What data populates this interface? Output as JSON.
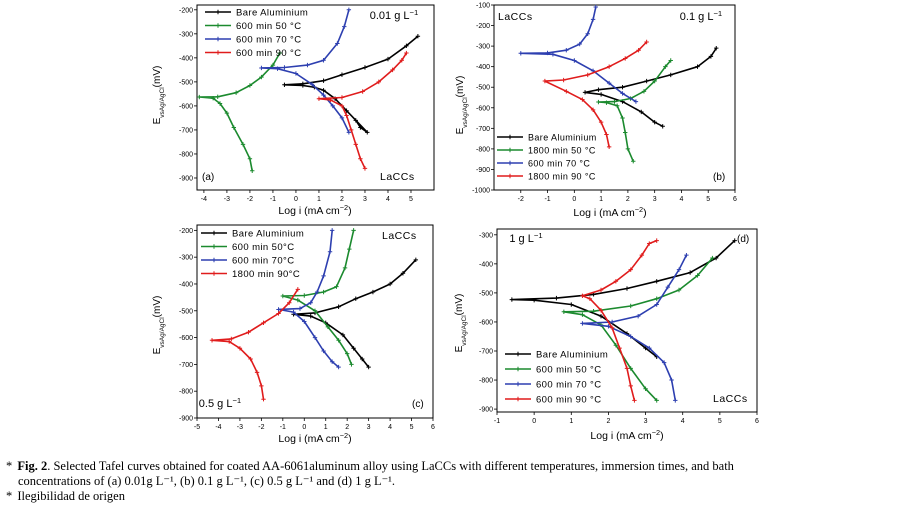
{
  "figure": {
    "caption": {
      "bullet": "*",
      "label": "Fig. 2",
      "line1_rest": ". Selected Tafel curves obtained for coated AA-6061aluminum alloy using LaCCs with different temperatures, immersion times, and bath",
      "line2": "concentrations of (a) 0.01g L⁻¹, (b) 0.1 g L⁻¹, (c) 0.5 g L⁻¹ and (d) 1 g L⁻¹.",
      "note": "Ilegibilidad de origen"
    }
  },
  "chart_data": [
    {
      "type": "line",
      "panel": "(a)",
      "concentration": "0.01 g L⁻¹",
      "coating": "LaCCs",
      "xlabel": "Log i (mA cm⁻²)",
      "ylabel": "E vs Ag/AgCl (mV)",
      "xlim": [
        -4.3,
        6
      ],
      "ylim": [
        -950,
        -180
      ],
      "xticks": [
        -4,
        -3,
        -2,
        -1,
        0,
        1,
        2,
        3,
        4,
        5
      ],
      "yticks": [
        -200,
        -300,
        -400,
        -500,
        -600,
        -700,
        -800,
        -900
      ],
      "legend_position": "top-left",
      "series": [
        {
          "name": "Bare Aluminium",
          "color": "#000000",
          "points": [
            [
              2.6,
              -660
            ],
            [
              2.8,
              -690
            ],
            [
              3.1,
              -710
            ],
            [
              2.2,
              -620
            ],
            [
              1.7,
              -570
            ],
            [
              1.2,
              -535
            ],
            [
              0.8,
              -522
            ],
            [
              0.3,
              -515
            ],
            [
              -0.5,
              -512
            ],
            [
              0.3,
              -508
            ],
            [
              1.2,
              -495
            ],
            [
              2.0,
              -470
            ],
            [
              3.0,
              -440
            ],
            [
              4.0,
              -405
            ],
            [
              4.8,
              -350
            ],
            [
              5.3,
              -310
            ]
          ]
        },
        {
          "name": "600 min 50 °C",
          "color": "#1b8a2e",
          "points": [
            [
              -1.9,
              -870
            ],
            [
              -2.0,
              -820
            ],
            [
              -2.3,
              -760
            ],
            [
              -2.7,
              -690
            ],
            [
              -3.0,
              -630
            ],
            [
              -3.3,
              -590
            ],
            [
              -3.6,
              -568
            ],
            [
              -4.2,
              -563
            ],
            [
              -3.4,
              -562
            ],
            [
              -2.6,
              -545
            ],
            [
              -2.0,
              -515
            ],
            [
              -1.5,
              -480
            ],
            [
              -1.0,
              -430
            ],
            [
              -0.7,
              -380
            ]
          ]
        },
        {
          "name": "600 min 70 °C",
          "color": "#2d3fb0",
          "points": [
            [
              2.3,
              -710
            ],
            [
              2.0,
              -650
            ],
            [
              1.6,
              -600
            ],
            [
              1.2,
              -555
            ],
            [
              0.7,
              -510
            ],
            [
              0.0,
              -465
            ],
            [
              -0.8,
              -445
            ],
            [
              -1.5,
              -442
            ],
            [
              -0.5,
              -440
            ],
            [
              0.5,
              -430
            ],
            [
              1.2,
              -410
            ],
            [
              1.8,
              -340
            ],
            [
              2.1,
              -270
            ],
            [
              2.3,
              -200
            ]
          ]
        },
        {
          "name": "600 min 90 °C",
          "color": "#e01c1c",
          "points": [
            [
              3.0,
              -860
            ],
            [
              2.8,
              -820
            ],
            [
              2.6,
              -760
            ],
            [
              2.4,
              -700
            ],
            [
              2.2,
              -640
            ],
            [
              2.0,
              -600
            ],
            [
              1.5,
              -575
            ],
            [
              1.0,
              -570
            ],
            [
              2.0,
              -565
            ],
            [
              2.9,
              -540
            ],
            [
              3.6,
              -500
            ],
            [
              4.2,
              -450
            ],
            [
              4.6,
              -410
            ],
            [
              4.8,
              -380
            ]
          ]
        }
      ]
    },
    {
      "type": "line",
      "panel": "(b)",
      "concentration": "0.1 g L⁻¹",
      "coating": "LaCCs",
      "xlabel": "Log i (mA cm⁻²)",
      "ylabel": "E vs Ag/AgCl (mV)",
      "xlim": [
        -3,
        6
      ],
      "ylim": [
        -1000,
        -100
      ],
      "xticks": [
        -2,
        -1,
        0,
        1,
        2,
        3,
        4,
        5,
        6
      ],
      "yticks": [
        -100,
        -200,
        -300,
        -400,
        -500,
        -600,
        -700,
        -800,
        -900,
        -1000
      ],
      "legend_position": "bottom-left",
      "series": [
        {
          "name": "Bare Aluminium",
          "color": "#000000",
          "points": [
            [
              3.3,
              -690
            ],
            [
              3.0,
              -670
            ],
            [
              2.5,
              -620
            ],
            [
              1.8,
              -570
            ],
            [
              1.0,
              -535
            ],
            [
              0.4,
              -525
            ],
            [
              0.9,
              -512
            ],
            [
              1.8,
              -500
            ],
            [
              2.7,
              -470
            ],
            [
              3.6,
              -440
            ],
            [
              4.6,
              -400
            ],
            [
              5.1,
              -350
            ],
            [
              5.3,
              -310
            ]
          ]
        },
        {
          "name": "1800 min 50 °C",
          "color": "#1b8a2e",
          "points": [
            [
              2.2,
              -860
            ],
            [
              2.0,
              -800
            ],
            [
              1.9,
              -720
            ],
            [
              1.8,
              -650
            ],
            [
              1.6,
              -590
            ],
            [
              1.2,
              -575
            ],
            [
              0.9,
              -572
            ],
            [
              1.5,
              -570
            ],
            [
              2.1,
              -555
            ],
            [
              2.6,
              -520
            ],
            [
              3.0,
              -470
            ],
            [
              3.4,
              -400
            ],
            [
              3.6,
              -370
            ]
          ]
        },
        {
          "name": "600  min 70 °C",
          "color": "#2d3fb0",
          "points": [
            [
              2.3,
              -570
            ],
            [
              1.8,
              -530
            ],
            [
              1.3,
              -480
            ],
            [
              0.7,
              -420
            ],
            [
              0.0,
              -370
            ],
            [
              -0.8,
              -340
            ],
            [
              -2.0,
              -335
            ],
            [
              -1.0,
              -333
            ],
            [
              -0.3,
              -320
            ],
            [
              0.2,
              -290
            ],
            [
              0.5,
              -240
            ],
            [
              0.7,
              -170
            ],
            [
              0.8,
              -110
            ]
          ]
        },
        {
          "name": "1800 min 90 °C",
          "color": "#e01c1c",
          "points": [
            [
              1.3,
              -790
            ],
            [
              1.2,
              -730
            ],
            [
              1.0,
              -670
            ],
            [
              0.7,
              -610
            ],
            [
              0.3,
              -560
            ],
            [
              -0.3,
              -520
            ],
            [
              -1.1,
              -470
            ],
            [
              -0.4,
              -465
            ],
            [
              0.5,
              -440
            ],
            [
              1.3,
              -400
            ],
            [
              1.9,
              -360
            ],
            [
              2.4,
              -320
            ],
            [
              2.7,
              -280
            ]
          ]
        }
      ]
    },
    {
      "type": "line",
      "panel": "(c)",
      "concentration": "0.5 g L⁻¹",
      "coating": "LaCCs",
      "xlabel": "Log i (mA cm⁻²)",
      "ylabel": "E vs Ag/AgCl (mV)",
      "xlim": [
        -5,
        6
      ],
      "ylim": [
        -900,
        -180
      ],
      "xticks": [
        -5,
        -4,
        -3,
        -2,
        -1,
        0,
        1,
        2,
        3,
        4,
        5,
        6
      ],
      "yticks": [
        -200,
        -300,
        -400,
        -500,
        -600,
        -700,
        -800,
        -900
      ],
      "legend_position": "top-left",
      "series": [
        {
          "name": "Bare Aluminium",
          "color": "#000000",
          "points": [
            [
              3.0,
              -710
            ],
            [
              2.7,
              -680
            ],
            [
              2.3,
              -640
            ],
            [
              1.8,
              -590
            ],
            [
              1.0,
              -545
            ],
            [
              0.3,
              -520
            ],
            [
              -0.5,
              -513
            ],
            [
              0.5,
              -508
            ],
            [
              1.6,
              -485
            ],
            [
              2.4,
              -455
            ],
            [
              3.2,
              -430
            ],
            [
              4.0,
              -400
            ],
            [
              4.6,
              -360
            ],
            [
              5.2,
              -310
            ]
          ]
        },
        {
          "name": "600 min 50°C",
          "color": "#1b8a2e",
          "points": [
            [
              2.2,
              -700
            ],
            [
              2.0,
              -660
            ],
            [
              1.6,
              -610
            ],
            [
              1.1,
              -560
            ],
            [
              0.5,
              -500
            ],
            [
              -0.3,
              -460
            ],
            [
              -1.0,
              -445
            ],
            [
              0.0,
              -443
            ],
            [
              0.9,
              -430
            ],
            [
              1.5,
              -410
            ],
            [
              1.9,
              -340
            ],
            [
              2.1,
              -270
            ],
            [
              2.3,
              -200
            ]
          ]
        },
        {
          "name": "600 min 70°C",
          "color": "#2d3fb0",
          "points": [
            [
              1.6,
              -710
            ],
            [
              1.3,
              -690
            ],
            [
              0.9,
              -650
            ],
            [
              0.5,
              -600
            ],
            [
              0.0,
              -540
            ],
            [
              -0.5,
              -505
            ],
            [
              -1.2,
              -495
            ],
            [
              -0.2,
              -492
            ],
            [
              0.3,
              -470
            ],
            [
              0.6,
              -430
            ],
            [
              0.9,
              -370
            ],
            [
              1.2,
              -280
            ],
            [
              1.3,
              -200
            ]
          ]
        },
        {
          "name": "1800 min 90°C",
          "color": "#e01c1c",
          "points": [
            [
              -1.9,
              -830
            ],
            [
              -2.0,
              -780
            ],
            [
              -2.2,
              -730
            ],
            [
              -2.5,
              -680
            ],
            [
              -3.0,
              -640
            ],
            [
              -3.5,
              -615
            ],
            [
              -4.3,
              -610
            ],
            [
              -3.4,
              -605
            ],
            [
              -2.6,
              -580
            ],
            [
              -1.9,
              -545
            ],
            [
              -1.2,
              -510
            ],
            [
              -0.7,
              -470
            ],
            [
              -0.3,
              -420
            ]
          ]
        }
      ]
    },
    {
      "type": "line",
      "panel": "(d)",
      "concentration": "1 g L⁻¹",
      "coating": "LaCCs",
      "xlabel": "Log i (mA cm⁻²)",
      "ylabel": "E vs Ag/AgCl (mV)",
      "xlim": [
        -1,
        6
      ],
      "ylim": [
        -910,
        -280
      ],
      "xticks": [
        -1,
        0,
        1,
        2,
        3,
        4,
        5,
        6
      ],
      "yticks": [
        -300,
        -400,
        -500,
        -600,
        -700,
        -800,
        -900
      ],
      "legend_position": "bottom-left",
      "series": [
        {
          "name": "Bare Aluminium",
          "color": "#000000",
          "points": [
            [
              3.3,
              -720
            ],
            [
              3.0,
              -690
            ],
            [
              2.5,
              -640
            ],
            [
              1.8,
              -580
            ],
            [
              1.0,
              -540
            ],
            [
              0.0,
              -525
            ],
            [
              -0.6,
              -523
            ],
            [
              0.6,
              -518
            ],
            [
              1.6,
              -505
            ],
            [
              2.5,
              -485
            ],
            [
              3.3,
              -460
            ],
            [
              4.2,
              -430
            ],
            [
              4.9,
              -380
            ],
            [
              5.4,
              -320
            ]
          ]
        },
        {
          "name": "600 min 50 °C",
          "color": "#1b8a2e",
          "points": [
            [
              3.3,
              -870
            ],
            [
              3.0,
              -830
            ],
            [
              2.6,
              -760
            ],
            [
              2.2,
              -680
            ],
            [
              1.8,
              -610
            ],
            [
              1.3,
              -575
            ],
            [
              0.8,
              -565
            ],
            [
              1.6,
              -563
            ],
            [
              2.6,
              -545
            ],
            [
              3.3,
              -520
            ],
            [
              3.9,
              -490
            ],
            [
              4.4,
              -440
            ],
            [
              4.8,
              -380
            ]
          ]
        },
        {
          "name": "600 min 70 °C",
          "color": "#2d3fb0",
          "points": [
            [
              3.8,
              -870
            ],
            [
              3.7,
              -800
            ],
            [
              3.5,
              -740
            ],
            [
              3.1,
              -690
            ],
            [
              2.6,
              -650
            ],
            [
              2.0,
              -615
            ],
            [
              1.3,
              -605
            ],
            [
              2.1,
              -600
            ],
            [
              2.8,
              -580
            ],
            [
              3.3,
              -540
            ],
            [
              3.6,
              -480
            ],
            [
              3.9,
              -420
            ],
            [
              4.1,
              -370
            ]
          ]
        },
        {
          "name": "600 min 90 °C",
          "color": "#e01c1c",
          "points": [
            [
              2.7,
              -870
            ],
            [
              2.6,
              -820
            ],
            [
              2.5,
              -760
            ],
            [
              2.3,
              -690
            ],
            [
              2.1,
              -620
            ],
            [
              1.8,
              -560
            ],
            [
              1.5,
              -520
            ],
            [
              1.3,
              -510
            ],
            [
              1.8,
              -490
            ],
            [
              2.2,
              -460
            ],
            [
              2.6,
              -420
            ],
            [
              2.9,
              -370
            ],
            [
              3.1,
              -330
            ],
            [
              3.3,
              -320
            ]
          ]
        }
      ]
    }
  ]
}
